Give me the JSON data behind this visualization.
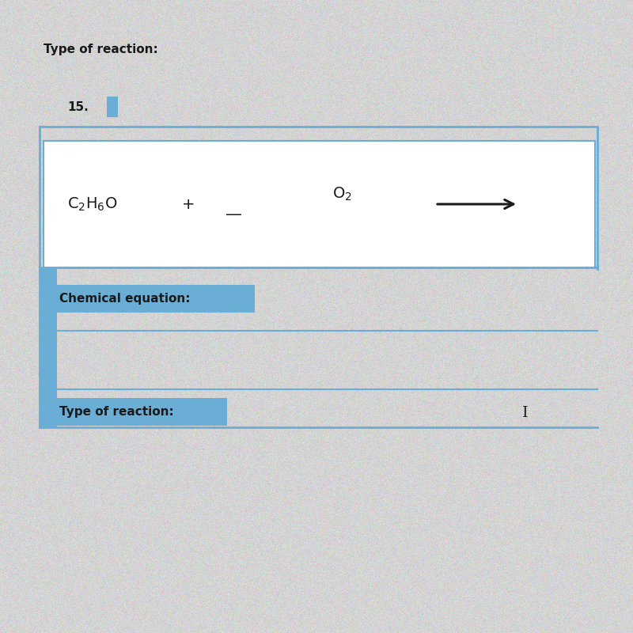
{
  "bg_color": "#d4cfc8",
  "box_bg": "#ffffff",
  "highlight_color": "#6aadd5",
  "border_color": "#6aadd5",
  "title_text": "Type of reaction:",
  "number_text": "15.",
  "chemical_equation_label": "Chemical equation:",
  "type_of_reaction_label": "Type of reaction:",
  "title_fontsize": 11,
  "number_fontsize": 11,
  "equation_fontsize": 14,
  "label_fontsize": 11,
  "figsize": [
    8.0,
    8.0
  ],
  "dpi": 100
}
